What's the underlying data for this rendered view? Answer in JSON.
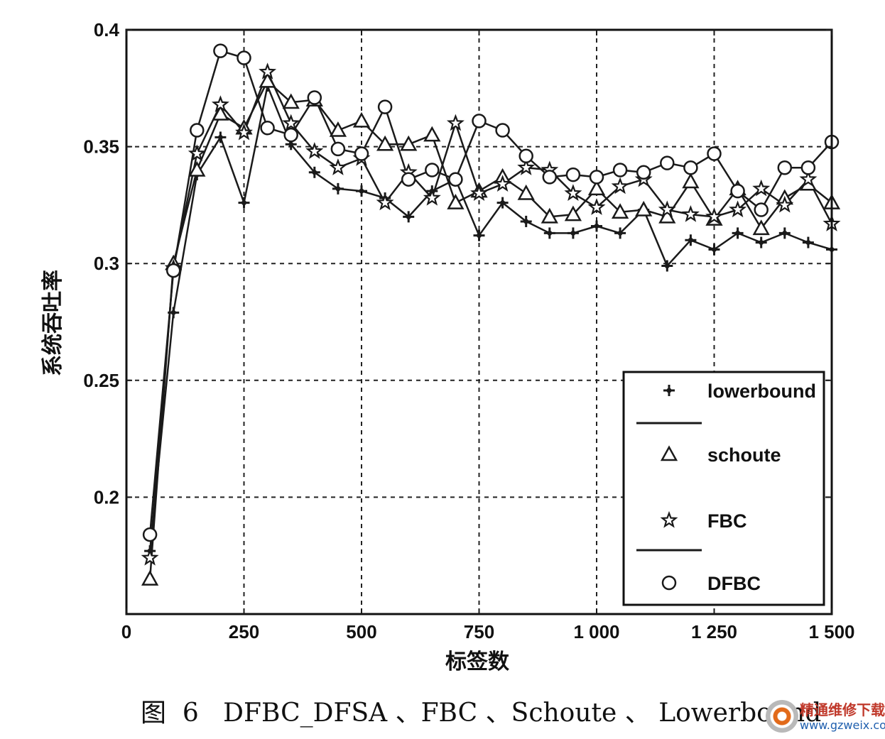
{
  "chart_data": {
    "type": "line",
    "title": "",
    "xlabel": "标签数",
    "ylabel": "系统吞吐率",
    "xlim": [
      0,
      1500
    ],
    "ylim": [
      0.15,
      0.4
    ],
    "xticks": [
      0,
      250,
      500,
      750,
      1000,
      1250,
      1500
    ],
    "xtick_labels": [
      "0",
      "250",
      "500",
      "750",
      "1 000",
      "1 250",
      "1 500"
    ],
    "yticks": [
      0.2,
      0.25,
      0.3,
      0.35,
      0.4
    ],
    "ytick_labels": [
      "0.2",
      "0.25",
      "0.3",
      "0.35",
      "0.4"
    ],
    "grid": true,
    "legend_position": "bottom-right",
    "x": [
      50,
      100,
      150,
      200,
      250,
      300,
      350,
      400,
      450,
      500,
      550,
      600,
      650,
      700,
      750,
      800,
      850,
      900,
      950,
      1000,
      1050,
      1100,
      1150,
      1200,
      1250,
      1300,
      1350,
      1400,
      1450,
      1500
    ],
    "series": [
      {
        "name": "lowerbound",
        "marker": "plus",
        "values": [
          0.177,
          0.279,
          0.338,
          0.354,
          0.326,
          0.376,
          0.351,
          0.339,
          0.332,
          0.331,
          0.328,
          0.32,
          0.331,
          0.336,
          0.312,
          0.326,
          0.318,
          0.313,
          0.313,
          0.316,
          0.313,
          0.323,
          0.299,
          0.31,
          0.306,
          0.313,
          0.309,
          0.313,
          0.309,
          0.306
        ]
      },
      {
        "name": "schoute",
        "marker": "triangle",
        "values": [
          0.165,
          0.3,
          0.34,
          0.364,
          0.358,
          0.378,
          0.369,
          0.37,
          0.357,
          0.361,
          0.351,
          0.351,
          0.355,
          0.326,
          0.331,
          0.337,
          0.33,
          0.32,
          0.321,
          0.332,
          0.322,
          0.323,
          0.32,
          0.335,
          0.319,
          0.332,
          0.315,
          0.328,
          0.334,
          0.326
        ]
      },
      {
        "name": "FBC",
        "marker": "star",
        "values": [
          0.174,
          0.298,
          0.347,
          0.368,
          0.356,
          0.382,
          0.36,
          0.348,
          0.341,
          0.345,
          0.326,
          0.339,
          0.328,
          0.36,
          0.33,
          0.334,
          0.341,
          0.34,
          0.33,
          0.324,
          0.333,
          0.336,
          0.323,
          0.321,
          0.32,
          0.323,
          0.332,
          0.325,
          0.336,
          0.317
        ]
      },
      {
        "name": "DFBC",
        "marker": "circle",
        "values": [
          0.184,
          0.297,
          0.357,
          0.391,
          0.388,
          0.358,
          0.355,
          0.371,
          0.349,
          0.347,
          0.367,
          0.336,
          0.34,
          0.336,
          0.361,
          0.357,
          0.346,
          0.337,
          0.338,
          0.337,
          0.34,
          0.339,
          0.343,
          0.341,
          0.347,
          0.331,
          0.323,
          0.341,
          0.341,
          0.352
        ]
      }
    ],
    "legend_entries": [
      "lowerbound",
      "schoute",
      "FBC",
      "DFBC"
    ]
  },
  "caption": "图  6   DFBC_DFSA 、FBC 、Schoute 、 Lowerbound",
  "watermark": {
    "title": "精通维修下载",
    "url": "www.gzweix.com"
  },
  "colors": {
    "line": "#1a1a1a",
    "grid": "#222222",
    "background": "#ffffff"
  }
}
